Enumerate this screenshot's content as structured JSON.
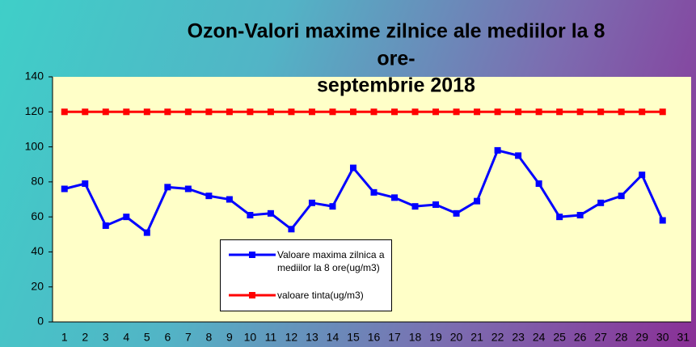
{
  "chart_data": {
    "type": "line",
    "title": [
      "Ozon-Valori maxime zilnice ale mediilor la 8",
      "ore-",
      "septembrie  2018"
    ],
    "categories": [
      1,
      2,
      3,
      4,
      5,
      6,
      7,
      8,
      9,
      10,
      11,
      12,
      13,
      14,
      15,
      16,
      17,
      18,
      19,
      20,
      21,
      22,
      23,
      24,
      25,
      26,
      27,
      28,
      29,
      30,
      31
    ],
    "series": [
      {
        "name": "Valoare maxima zilnica a mediilor  la 8 ore(ug/m3)",
        "color": "#0000ff",
        "values": [
          76,
          79,
          55,
          60,
          51,
          77,
          76,
          72,
          70,
          61,
          62,
          53,
          68,
          66,
          88,
          74,
          71,
          66,
          67,
          62,
          69,
          98,
          95,
          79,
          60,
          61,
          68,
          72,
          84,
          58,
          null
        ]
      },
      {
        "name": "valoare tinta(ug/m3)",
        "color": "#ff0000",
        "values": [
          120,
          120,
          120,
          120,
          120,
          120,
          120,
          120,
          120,
          120,
          120,
          120,
          120,
          120,
          120,
          120,
          120,
          120,
          120,
          120,
          120,
          120,
          120,
          120,
          120,
          120,
          120,
          120,
          120,
          120,
          null
        ]
      }
    ],
    "ylim": [
      0,
      140
    ],
    "yticks": [
      0,
      20,
      40,
      60,
      80,
      100,
      120,
      140
    ],
    "grid": false
  }
}
